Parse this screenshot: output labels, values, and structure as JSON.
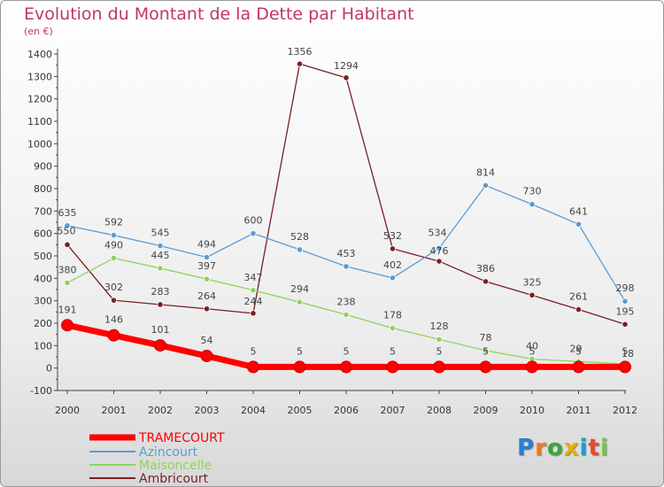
{
  "title": "Evolution du Montant de la Dette par Habitant",
  "subtitle": "(en €)",
  "logo_text": "Proxiti",
  "chart_data": {
    "type": "line",
    "title": "Evolution du Montant de la Dette par Habitant",
    "subtitle": "(en €)",
    "xlabel": "",
    "ylabel": "",
    "x": [
      "2000",
      "2001",
      "2002",
      "2003",
      "2004",
      "2005",
      "2006",
      "2007",
      "2008",
      "2009",
      "2010",
      "2011",
      "2012"
    ],
    "ylim": [
      -100,
      1400
    ],
    "yticks": [
      -100,
      0,
      100,
      200,
      300,
      400,
      500,
      600,
      700,
      800,
      900,
      1000,
      1100,
      1200,
      1300,
      1400
    ],
    "grid": false,
    "legend_position": "bottom-left",
    "series": [
      {
        "name": "TRAMECOURT",
        "color": "#ff0000",
        "values": [
          191,
          146,
          101,
          54,
          5,
          5,
          5,
          5,
          5,
          5,
          5,
          5,
          5
        ],
        "labels": [
          "191",
          "146",
          "101",
          "54",
          "5",
          "5",
          "5",
          "5",
          "5",
          "5",
          "5",
          "5",
          "5"
        ]
      },
      {
        "name": "Azincourt",
        "color": "#5a9bd5",
        "values": [
          635,
          592,
          545,
          494,
          600,
          528,
          453,
          402,
          534,
          814,
          730,
          641,
          298
        ],
        "labels": [
          "635",
          "592",
          "545",
          "494",
          "600",
          "528",
          "453",
          "402",
          "534",
          "814",
          "730",
          "641",
          "298"
        ]
      },
      {
        "name": "Maisoncelle",
        "color": "#8fd35a",
        "values": [
          380,
          490,
          445,
          397,
          347,
          294,
          238,
          178,
          128,
          78,
          40,
          29,
          18
        ],
        "labels": [
          "380",
          "490",
          "445",
          "397",
          "347",
          "294",
          "238",
          "178",
          "128",
          "78",
          "40",
          "29",
          "18"
        ]
      },
      {
        "name": "Ambricourt",
        "color": "#7a1f24",
        "values": [
          550,
          302,
          283,
          264,
          244,
          1356,
          1294,
          532,
          476,
          386,
          325,
          261,
          195
        ],
        "labels": [
          "550",
          "302",
          "283",
          "264",
          "244",
          "1356",
          "1294",
          "532",
          "476",
          "386",
          "325",
          "261",
          "195"
        ]
      }
    ]
  }
}
